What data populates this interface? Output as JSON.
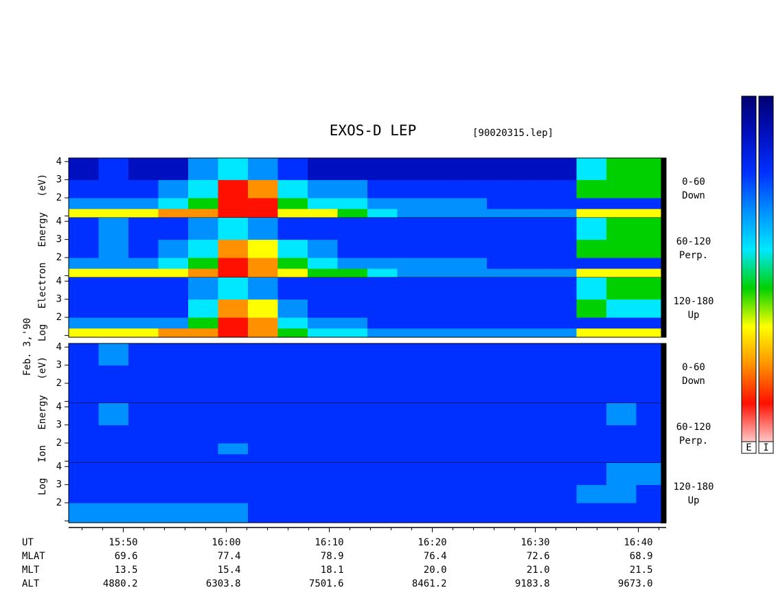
{
  "chart_data": {
    "type": "spectrogram",
    "title": "EXOS-D LEP",
    "subtitle": "[90020315.lep]",
    "date_label": "Feb. 3,'90",
    "xlim": [
      944.7,
      1002.7
    ],
    "xticks": [
      {
        "value": 950,
        "label": "15:50"
      },
      {
        "value": 960,
        "label": "16:00"
      },
      {
        "value": 970,
        "label": "16:10"
      },
      {
        "value": 980,
        "label": "16:20"
      },
      {
        "value": 990,
        "label": "16:30"
      },
      {
        "value": 1000,
        "label": "16:40"
      }
    ],
    "xminorticks": [
      946,
      948,
      952,
      954,
      956,
      958,
      962,
      964,
      966,
      968,
      972,
      974,
      976,
      978,
      982,
      984,
      986,
      988,
      992,
      994,
      996,
      998,
      1002
    ],
    "xbins": [
      944.7,
      947.6,
      950.5,
      953.4,
      956.3,
      959.2,
      962.1,
      965.0,
      967.9,
      970.8,
      973.7,
      976.6,
      979.5,
      982.4,
      985.3,
      988.2,
      991.1,
      994.0,
      996.9,
      999.8,
      1002.7
    ],
    "ybins": [
      0.9,
      1.4,
      2,
      3,
      4.2
    ],
    "ylim": [
      0.9,
      4.2
    ],
    "yticks": [
      2,
      3,
      4
    ],
    "yminorticks": [
      1
    ],
    "colors": [
      "#000070",
      "#0010c0",
      "#0030ff",
      "#0090ff",
      "#00e8ff",
      "#00d000",
      "#ffff00",
      "#ff9000",
      "#ff1000",
      "#ffc8c8"
    ],
    "colorbar_labels": [
      "E",
      "I"
    ],
    "groups": [
      {
        "ylabel": "Log Electron Energy (eV)",
        "panels": [
          {
            "labels": [
              "0-60",
              "Down"
            ],
            "values": [
              [
                6,
                6,
                6,
                7,
                7,
                8,
                8,
                6,
                6,
                5,
                4,
                3,
                3,
                3,
                3,
                3,
                3,
                6,
                6,
                6
              ],
              [
                3,
                3,
                3,
                4,
                5,
                8,
                8,
                5,
                4,
                4,
                3,
                3,
                3,
                3,
                2,
                2,
                2,
                2,
                2,
                2
              ],
              [
                2,
                2,
                2,
                3,
                4,
                8,
                7,
                4,
                3,
                3,
                2,
                2,
                2,
                2,
                2,
                2,
                2,
                5,
                5,
                5
              ],
              [
                1,
                2,
                1,
                1,
                3,
                4,
                3,
                2,
                1,
                1,
                1,
                1,
                1,
                1,
                1,
                1,
                1,
                4,
                5,
                5
              ]
            ]
          },
          {
            "labels": [
              "60-120",
              "Perp."
            ],
            "values": [
              [
                6,
                6,
                6,
                6,
                7,
                8,
                7,
                6,
                5,
                5,
                4,
                3,
                3,
                3,
                3,
                3,
                3,
                6,
                6,
                6
              ],
              [
                3,
                3,
                3,
                4,
                5,
                8,
                7,
                5,
                4,
                3,
                3,
                3,
                3,
                3,
                2,
                2,
                2,
                2,
                2,
                2
              ],
              [
                2,
                3,
                2,
                3,
                4,
                7,
                6,
                4,
                3,
                2,
                2,
                2,
                2,
                2,
                2,
                2,
                2,
                5,
                5,
                5
              ],
              [
                2,
                3,
                2,
                2,
                3,
                4,
                3,
                2,
                2,
                2,
                2,
                2,
                2,
                2,
                2,
                2,
                2,
                4,
                5,
                5
              ]
            ]
          },
          {
            "labels": [
              "120-180",
              "Up"
            ],
            "values": [
              [
                6,
                6,
                6,
                7,
                7,
                8,
                7,
                5,
                4,
                4,
                3,
                3,
                3,
                3,
                3,
                3,
                3,
                6,
                6,
                6
              ],
              [
                3,
                3,
                3,
                3,
                5,
                8,
                7,
                4,
                3,
                3,
                2,
                2,
                2,
                2,
                2,
                2,
                2,
                2,
                2,
                2
              ],
              [
                2,
                2,
                2,
                2,
                4,
                7,
                6,
                3,
                2,
                2,
                2,
                2,
                2,
                2,
                2,
                2,
                2,
                5,
                4,
                4
              ],
              [
                2,
                2,
                2,
                2,
                3,
                4,
                3,
                2,
                2,
                2,
                2,
                2,
                2,
                2,
                2,
                2,
                2,
                4,
                5,
                5
              ]
            ]
          }
        ]
      },
      {
        "ylabel": "Log Ion Energy (eV)",
        "panels": [
          {
            "labels": [
              "0-60",
              "Down"
            ],
            "values": [
              [
                2,
                2,
                2,
                2,
                2,
                2,
                2,
                2,
                2,
                2,
                2,
                2,
                2,
                2,
                2,
                2,
                2,
                2,
                2,
                2
              ],
              [
                2,
                2,
                2,
                2,
                2,
                2,
                2,
                2,
                2,
                2,
                2,
                2,
                2,
                2,
                2,
                2,
                2,
                2,
                2,
                2
              ],
              [
                2,
                2,
                2,
                2,
                2,
                2,
                2,
                2,
                2,
                2,
                2,
                2,
                2,
                2,
                2,
                2,
                2,
                2,
                2,
                2
              ],
              [
                2,
                3,
                2,
                2,
                2,
                2,
                2,
                2,
                2,
                2,
                2,
                2,
                2,
                2,
                2,
                2,
                2,
                2,
                2,
                2
              ]
            ]
          },
          {
            "labels": [
              "60-120",
              "Perp."
            ],
            "values": [
              [
                2,
                2,
                2,
                2,
                2,
                2,
                2,
                2,
                2,
                2,
                2,
                2,
                2,
                2,
                2,
                2,
                2,
                2,
                2,
                2
              ],
              [
                2,
                2,
                2,
                2,
                2,
                3,
                2,
                2,
                2,
                2,
                2,
                2,
                2,
                2,
                2,
                2,
                2,
                2,
                2,
                2
              ],
              [
                2,
                2,
                2,
                2,
                2,
                2,
                2,
                2,
                2,
                2,
                2,
                2,
                2,
                2,
                2,
                2,
                2,
                2,
                2,
                2
              ],
              [
                2,
                3,
                2,
                2,
                2,
                2,
                2,
                2,
                2,
                2,
                2,
                2,
                2,
                2,
                2,
                2,
                2,
                2,
                3,
                2
              ]
            ]
          },
          {
            "labels": [
              "120-180",
              "Up"
            ],
            "values": [
              [
                3,
                3,
                3,
                3,
                3,
                3,
                2,
                2,
                2,
                2,
                2,
                2,
                2,
                2,
                2,
                2,
                2,
                2,
                2,
                2
              ],
              [
                3,
                3,
                3,
                3,
                3,
                3,
                2,
                2,
                2,
                2,
                2,
                2,
                2,
                2,
                2,
                2,
                2,
                2,
                2,
                2
              ],
              [
                2,
                2,
                2,
                2,
                2,
                2,
                2,
                2,
                2,
                2,
                2,
                2,
                2,
                2,
                2,
                2,
                2,
                3,
                3,
                2
              ],
              [
                2,
                2,
                2,
                2,
                2,
                2,
                2,
                2,
                2,
                2,
                2,
                2,
                2,
                2,
                2,
                2,
                2,
                2,
                3,
                3
              ]
            ]
          }
        ]
      }
    ],
    "ephemeris": {
      "row_labels": [
        "UT",
        "MLAT",
        "MLT",
        "ALT"
      ],
      "rows": [
        [
          "69.6",
          "77.4",
          "78.9",
          "76.4",
          "72.6",
          "68.9"
        ],
        [
          "13.5",
          "15.4",
          "18.1",
          "20.0",
          "21.0",
          "21.5"
        ],
        [
          "4880.2",
          "6303.8",
          "7501.6",
          "8461.2",
          "9183.8",
          "9673.0"
        ]
      ]
    }
  }
}
